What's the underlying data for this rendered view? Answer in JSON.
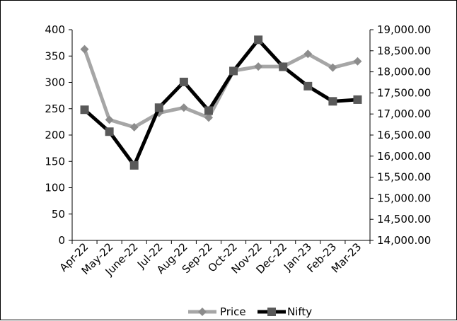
{
  "chart_data": {
    "type": "line",
    "title": "",
    "xlabel": "",
    "ylabel": "",
    "categories": [
      "Apr-22",
      "May-22",
      "June-22",
      "Jul-22",
      "Aug-22",
      "Sep-22",
      "Oct-22",
      "Nov-22",
      "Dec-22",
      "Jan-23",
      "Feb-23",
      "Mar-23"
    ],
    "y_left": {
      "range": [
        0,
        400
      ],
      "ticks": [
        "0",
        "50",
        "100",
        "150",
        "200",
        "250",
        "300",
        "350",
        "400"
      ]
    },
    "y_right": {
      "range": [
        14000,
        19000
      ],
      "ticks": [
        "14,000.00",
        "14,500.00",
        "15,000.00",
        "15,500.00",
        "16,000.00",
        "16,500.00",
        "17,000.00",
        "17,500.00",
        "18,000.00",
        "18,500.00",
        "19,000.00"
      ]
    },
    "grid": false,
    "legend_position": "bottom",
    "series": [
      {
        "name": "Price",
        "axis": "left",
        "marker": "diamond",
        "color": "#a6a6a6",
        "values": [
          363,
          229,
          215,
          242,
          252,
          233,
          322,
          330,
          330,
          354,
          328,
          340
        ]
      },
      {
        "name": "Nifty",
        "axis": "right",
        "marker": "square",
        "color": "#000000",
        "marker_color": "#595959",
        "values": [
          17100,
          16580,
          15780,
          17150,
          17760,
          17080,
          18020,
          18760,
          18120,
          17660,
          17300,
          17340
        ]
      }
    ]
  },
  "legend": {
    "price_label": "Price",
    "nifty_label": "Nifty"
  }
}
